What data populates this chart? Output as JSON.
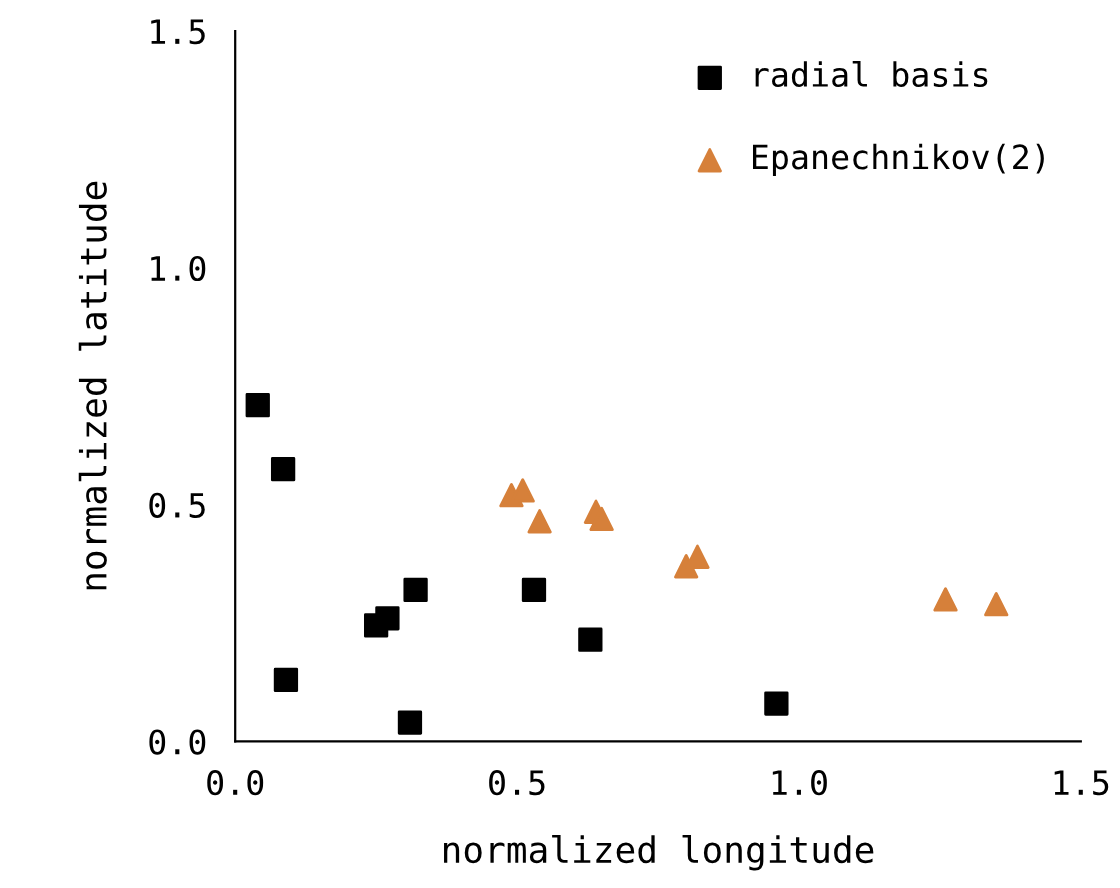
{
  "chart_data": {
    "type": "scatter",
    "xlabel": "normalized longitude",
    "ylabel": "normalized latitude",
    "xlim": [
      0,
      1.5
    ],
    "ylim": [
      0,
      1.5
    ],
    "xticks": [
      {
        "value": 0,
        "label": "0.0"
      },
      {
        "value": 0.5,
        "label": "0.5"
      },
      {
        "value": 1,
        "label": "1.0"
      },
      {
        "value": 1.5,
        "label": "1.5"
      }
    ],
    "yticks": [
      {
        "value": 0,
        "label": "0.0"
      },
      {
        "value": 0.5,
        "label": "0.5"
      },
      {
        "value": 1,
        "label": "1.0"
      },
      {
        "value": 1.5,
        "label": "1.5"
      }
    ],
    "legend": "top right",
    "grid": false,
    "series": [
      {
        "name": "radial basis",
        "color": "#000000",
        "marker": "square",
        "x": [
          0.04,
          0.085,
          0.09,
          0.25,
          0.27,
          0.32,
          0.31,
          0.53,
          0.63,
          0.96
        ],
        "values": [
          0.71,
          0.575,
          0.13,
          0.245,
          0.26,
          0.32,
          0.04,
          0.32,
          0.215,
          0.08
        ]
      },
      {
        "name": "Epanechnikov(2)",
        "color": "#d6803a",
        "marker": "triangle",
        "x": [
          0.49,
          0.51,
          0.54,
          0.64,
          0.65,
          0.8,
          0.82,
          1.26,
          1.35
        ],
        "values": [
          0.52,
          0.53,
          0.465,
          0.485,
          0.47,
          0.37,
          0.39,
          0.3,
          0.29
        ]
      }
    ]
  }
}
